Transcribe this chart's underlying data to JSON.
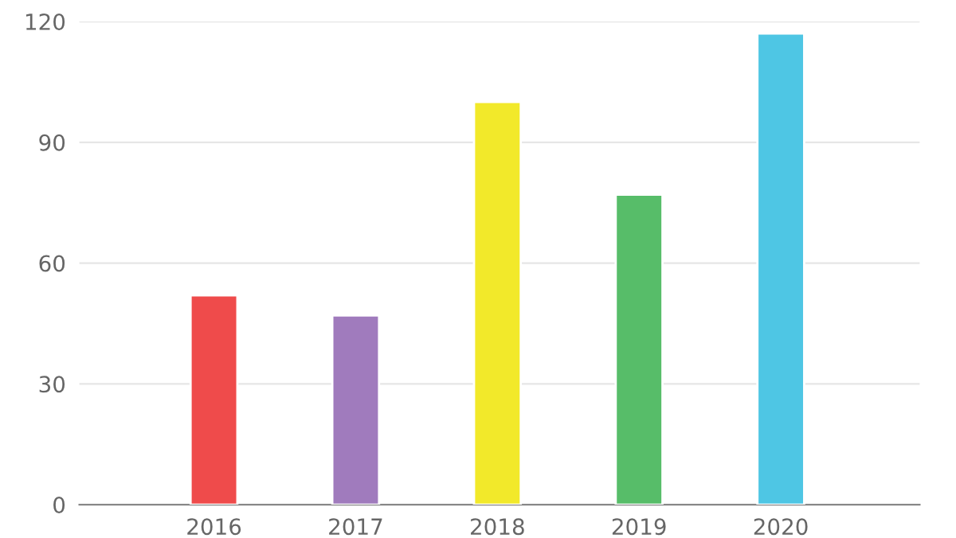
{
  "chart_data": {
    "type": "bar",
    "categories": [
      "2016",
      "2017",
      "2018",
      "2019",
      "2020"
    ],
    "values": [
      52,
      47,
      100,
      77,
      117
    ],
    "colors": [
      "#ef4b4b",
      "#a07bbd",
      "#f2e92a",
      "#57bd69",
      "#4ec6e4"
    ],
    "ylim": [
      0,
      120
    ],
    "yticks": [
      0,
      30,
      60,
      90,
      120
    ],
    "grid": "y"
  }
}
